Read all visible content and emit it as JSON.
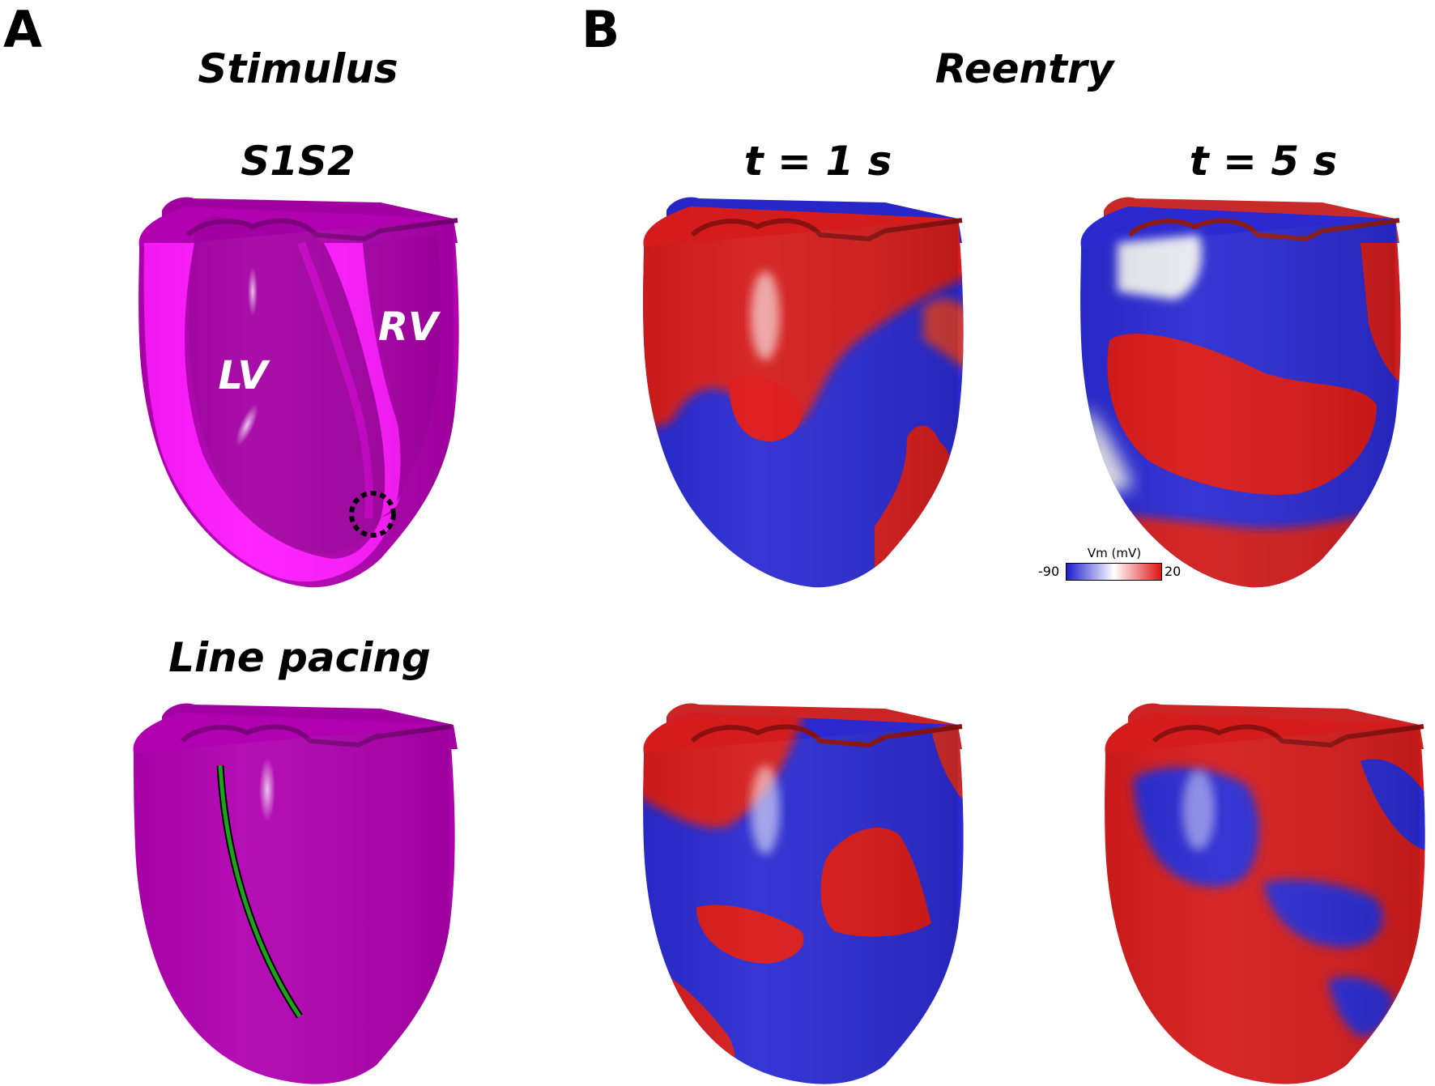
{
  "panels": {
    "a": {
      "letter": "A",
      "title": "Stimulus"
    },
    "b": {
      "letter": "B",
      "title": "Reentry"
    }
  },
  "headings": {
    "s1s2": "S1S2",
    "line_pacing": "Line pacing",
    "t1": "t = 1 s",
    "t5": "t = 5 s"
  },
  "labels": {
    "lv": "LV",
    "rv": "RV"
  },
  "colorbar": {
    "title": "Vm (mV)",
    "min": "-90",
    "max": "20",
    "min_value": -90,
    "max_value": 20,
    "colors": {
      "low": "#1d1fd0",
      "mid": "#ffffff",
      "high": "#e01515"
    }
  },
  "colors": {
    "myocardium": "#b000b0",
    "endocardium_cut": "#ff18ff",
    "pacing_line": "#1fa01f"
  }
}
